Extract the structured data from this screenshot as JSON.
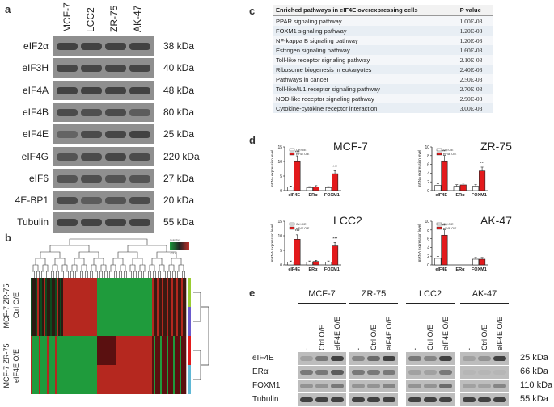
{
  "panel_letters": {
    "a": "a",
    "b": "b",
    "c": "c",
    "d": "d",
    "e": "e"
  },
  "panel_a": {
    "lanes": [
      "MCF-7",
      "LCC2",
      "ZR-75",
      "AK-47"
    ],
    "rows": [
      {
        "protein": "eIF2α",
        "size": "38 kDa"
      },
      {
        "protein": "eIF3H",
        "size": "40 kDa"
      },
      {
        "protein": "eIF4A",
        "size": "48 kDa"
      },
      {
        "protein": "eIF4B",
        "size": "80 kDa"
      },
      {
        "protein": "eIF4E",
        "size": "25 kDa"
      },
      {
        "protein": "eIF4G",
        "size": "220 kDa"
      },
      {
        "protein": "eIF6",
        "size": "27 kDa"
      },
      {
        "protein": "4E-BP1",
        "size": "20 kDa"
      },
      {
        "protein": "Tubulin",
        "size": "55 kDa"
      }
    ]
  },
  "panel_b": {
    "group1_label": "MCF-7 ZR-75",
    "group1_sub": "Ctrl O/E",
    "group2_label": "MCF-7 ZR-75",
    "group2_sub": "eIF4E O/E",
    "legend_top": "Color Key",
    "legend_bottom": "-2 0 2"
  },
  "panel_c": {
    "col_pathway": "Enriched pathways in eIF4E overexpressing cells",
    "col_pvalue": "P value",
    "rows": [
      {
        "pathway": "PPAR signaling pathway",
        "p": "1.00E-03"
      },
      {
        "pathway": "FOXM1 signaling pathway",
        "p": "1.20E-03"
      },
      {
        "pathway": "NF-kappa B signaling pathway",
        "p": "1.20E-03"
      },
      {
        "pathway": "Estrogen signaling pathway",
        "p": "1.60E-03"
      },
      {
        "pathway": "Toll-like receptor signaling pathway",
        "p": "2.10E-03"
      },
      {
        "pathway": "Ribosome biogenesis in eukaryotes",
        "p": "2.40E-03"
      },
      {
        "pathway": "Pathways in cancer",
        "p": "2.50E-03"
      },
      {
        "pathway": "Toll-like/IL1 receptor signaling pathway",
        "p": "2.70E-03"
      },
      {
        "pathway": "NOD-like receptor signaling pathway",
        "p": "2.90E-03"
      },
      {
        "pathway": "Cytokine-cytokine receptor interaction",
        "p": "3.00E-03"
      }
    ]
  },
  "chart_data": [
    {
      "type": "bar",
      "title": "MCF-7",
      "ylabel": "mRNA expression level",
      "categories": [
        "eIF4E",
        "ERα",
        "FOXM1"
      ],
      "ylim": [
        0,
        15
      ],
      "yticks": [
        0,
        5,
        10,
        15
      ],
      "series": [
        {
          "name": "Ctrl O/E",
          "values": [
            1.2,
            1.0,
            1.0
          ]
        },
        {
          "name": "eIF4E O/E",
          "values": [
            10.2,
            1.3,
            5.8
          ]
        }
      ],
      "sig": [
        "***",
        "",
        "***"
      ]
    },
    {
      "type": "bar",
      "title": "ZR-75",
      "ylabel": "mRNA expression level",
      "categories": [
        "eIF4E",
        "ERα",
        "FOXM1"
      ],
      "ylim": [
        0,
        10
      ],
      "yticks": [
        0,
        2,
        4,
        6,
        8,
        10
      ],
      "series": [
        {
          "name": "Ctrl O/E",
          "values": [
            1.2,
            1.0,
            1.0
          ]
        },
        {
          "name": "eIF4E O/E",
          "values": [
            6.8,
            1.3,
            4.5
          ]
        }
      ],
      "sig": [
        "***",
        "",
        "***"
      ]
    },
    {
      "type": "bar",
      "title": "LCC2",
      "ylabel": "mRNA expression level",
      "categories": [
        "eIF4E",
        "ERα",
        "FOXM1"
      ],
      "ylim": [
        0,
        15
      ],
      "yticks": [
        0,
        5,
        10,
        15
      ],
      "series": [
        {
          "name": "Ctrl O/E",
          "values": [
            1.0,
            1.0,
            1.0
          ]
        },
        {
          "name": "eIF4E O/E",
          "values": [
            8.8,
            1.2,
            6.5
          ]
        }
      ],
      "sig": [
        "***",
        "",
        "***"
      ]
    },
    {
      "type": "bar",
      "title": "AK-47",
      "ylabel": "mRNA expression level",
      "categories": [
        "eIF4E",
        "ERα",
        "FOXM1"
      ],
      "ylim": [
        0,
        10
      ],
      "yticks": [
        0,
        2,
        4,
        6,
        8,
        10
      ],
      "series": [
        {
          "name": "Ctrl O/E",
          "values": [
            1.5,
            0.0,
            1.3
          ]
        },
        {
          "name": "eIF4E O/E",
          "values": [
            6.8,
            0.0,
            1.3
          ]
        }
      ],
      "sig": [
        "***",
        "",
        ""
      ]
    }
  ],
  "panel_e": {
    "groups": [
      "MCF-7",
      "ZR-75",
      "LCC2",
      "AK-47"
    ],
    "lanes": [
      "-",
      "Ctrl O/E",
      "eIF4E O/E"
    ],
    "rows": [
      {
        "protein": "eIF4E",
        "size": "25 kDa"
      },
      {
        "protein": "ERα",
        "size": "66 kDa"
      },
      {
        "protein": "FOXM1",
        "size": "110 kDa"
      },
      {
        "protein": "Tubulin",
        "size": "55 kDa"
      }
    ]
  },
  "colors": {
    "ctrl": "#ffffff",
    "oe": "#e31a1c",
    "heat_green": "#1a9a3a",
    "heat_red": "#c0302a"
  }
}
